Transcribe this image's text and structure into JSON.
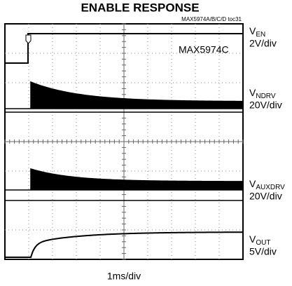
{
  "title": "ENABLE RESPONSE",
  "figure_id": "MAX5974A/B/C/D toc31",
  "device": "MAX5974C",
  "channels": [
    {
      "symbol": "V",
      "subscript": "EN",
      "scale": "2V/div"
    },
    {
      "symbol": "V",
      "subscript": "NDRV",
      "scale": "20V/div"
    },
    {
      "symbol": "V",
      "subscript": "AUXDRV",
      "scale": "20V/div"
    },
    {
      "symbol": "V",
      "subscript": "OUT",
      "scale": "5V/div"
    }
  ],
  "time_scale": "1ms/div"
}
